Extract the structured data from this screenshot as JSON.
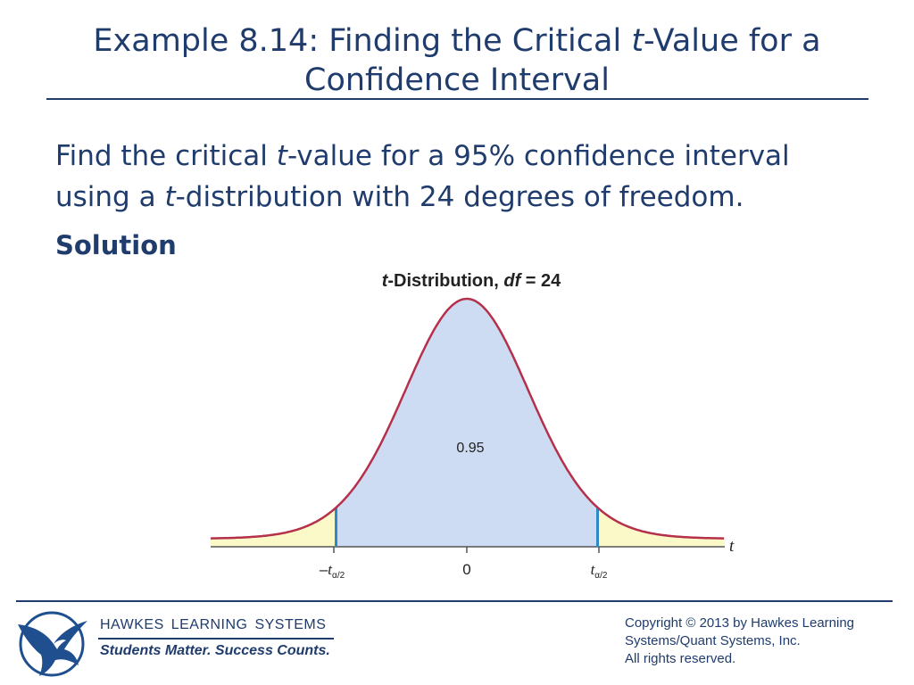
{
  "slide": {
    "title_part1": "Example 8.14: Finding the Critical ",
    "title_t": "t",
    "title_part2": "-Value for a Confidence Interval"
  },
  "problem": {
    "part1": "Find the critical ",
    "t1": "t",
    "part2": "-value for a 95% confidence interval using a ",
    "t2": "t",
    "part3": "-distribution with 24 degrees of freedom."
  },
  "solution_heading": "Solution",
  "figure": {
    "title_t": "t",
    "title_mid": "-Distribution, ",
    "title_df": "df",
    "title_end": " = 24",
    "center_area_label": "0.95",
    "axis_variable": "t",
    "tick_left_prefix": "–",
    "tick_left_t": "t",
    "tick_sub": "α/2",
    "tick_center": "0",
    "tick_right_t": "t",
    "curve_color": "#b5304a",
    "center_fill": "#cddcf2",
    "tail_fill": "#fbf9c8",
    "marker_color": "#2f89c6"
  },
  "footer": {
    "publisher": "HAWKES LEARNING SYSTEMS",
    "tagline": "Students Matter. Success Counts.",
    "copyright_line1": "Copyright © 2013 by Hawkes Learning",
    "copyright_line2": "Systems/Quant Systems, Inc.",
    "copyright_line3": "All rights reserved.",
    "logo_icon": "eagle-logo-icon"
  }
}
